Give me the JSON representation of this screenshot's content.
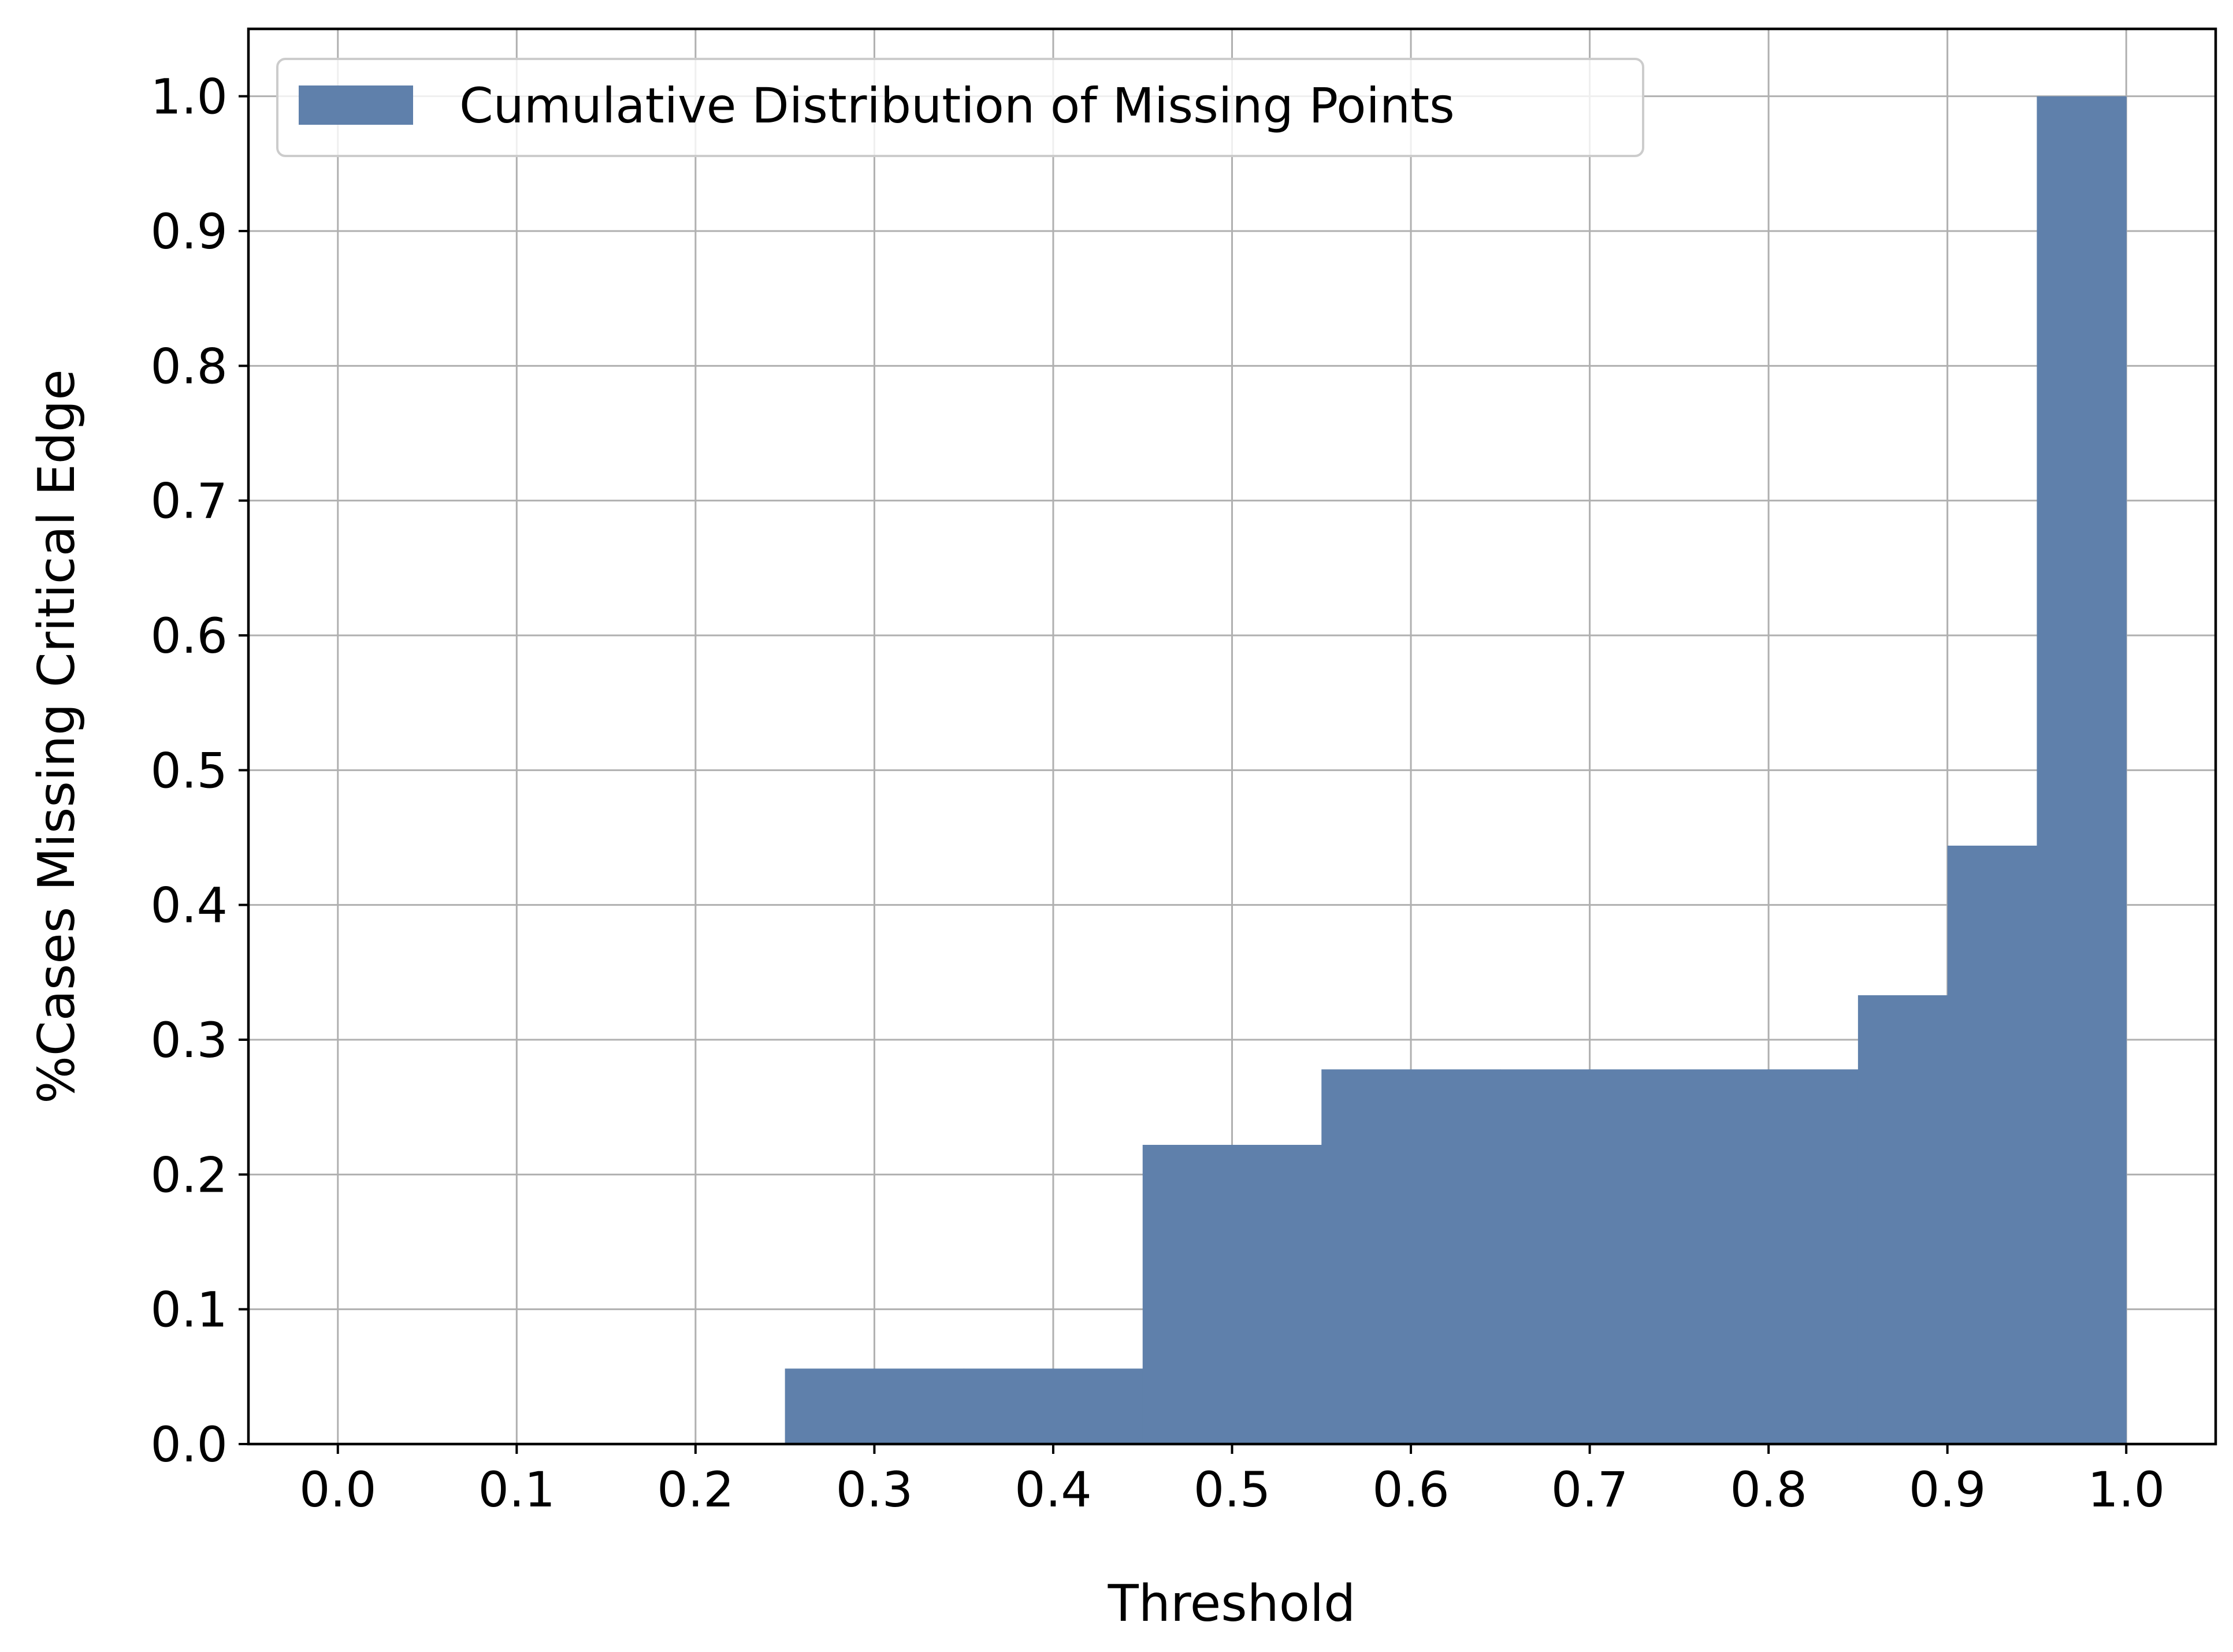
{
  "chart_data": {
    "type": "bar",
    "bin_edges": [
      0.25,
      0.35,
      0.45,
      0.55,
      0.65,
      0.75,
      0.85,
      0.9,
      0.95,
      1.0
    ],
    "series": [
      {
        "name": "Cumulative Distribution of Missing Points",
        "values": [
          0.056,
          0.056,
          0.222,
          0.278,
          0.278,
          0.278,
          0.333,
          0.444,
          1.0
        ]
      }
    ],
    "xlabel": "Threshold",
    "ylabel": "%Cases Missing Critical Edge",
    "xlim": [
      -0.05,
      1.05
    ],
    "ylim": [
      0,
      1.05
    ],
    "xticks": [
      "0.0",
      "0.1",
      "0.2",
      "0.3",
      "0.4",
      "0.5",
      "0.6",
      "0.7",
      "0.8",
      "0.9",
      "1.0"
    ],
    "yticks": [
      "0.0",
      "0.1",
      "0.2",
      "0.3",
      "0.4",
      "0.5",
      "0.6",
      "0.7",
      "0.8",
      "0.9",
      "1.0"
    ],
    "grid": true,
    "legend_position": "top-left",
    "bar_color": "#5f80ab",
    "grid_color": "#b0b0b0"
  }
}
